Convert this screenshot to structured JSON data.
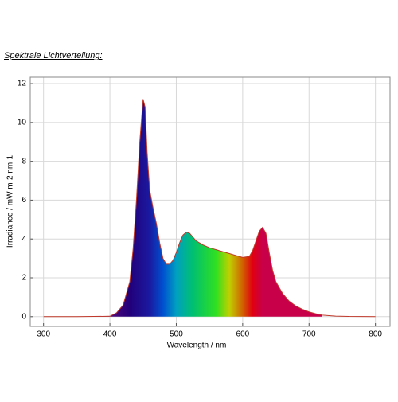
{
  "chart_data": {
    "type": "area",
    "title": "Spektrale Lichtverteilung:",
    "x_label": "Wavelength / nm",
    "y_label": "Irradiance / mW m-2 nm-1",
    "x": [
      300,
      350,
      400,
      410,
      420,
      430,
      435,
      440,
      445,
      450,
      453,
      456,
      460,
      465,
      470,
      475,
      480,
      485,
      490,
      495,
      500,
      505,
      510,
      515,
      520,
      525,
      530,
      540,
      550,
      560,
      570,
      580,
      590,
      600,
      610,
      615,
      620,
      625,
      630,
      635,
      640,
      645,
      650,
      660,
      670,
      680,
      690,
      700,
      710,
      720,
      740,
      760,
      800
    ],
    "values": [
      0,
      0,
      0.02,
      0.2,
      0.6,
      1.8,
      3.5,
      6,
      9,
      11.2,
      10.8,
      8.5,
      6.5,
      5.6,
      4.8,
      3.8,
      3.0,
      2.7,
      2.7,
      2.9,
      3.3,
      3.8,
      4.2,
      4.35,
      4.3,
      4.1,
      3.9,
      3.7,
      3.55,
      3.45,
      3.35,
      3.25,
      3.15,
      3.05,
      3.1,
      3.4,
      3.9,
      4.4,
      4.6,
      4.3,
      3.3,
      2.4,
      1.8,
      1.2,
      0.8,
      0.55,
      0.38,
      0.25,
      0.15,
      0.08,
      0.03,
      0.01,
      0
    ],
    "color": "#c0392b",
    "xlim": [
      280,
      822
    ],
    "ylim": [
      -0.5,
      12.33
    ],
    "xticks": [
      300,
      400,
      500,
      600,
      700,
      800
    ],
    "yticks": [
      0,
      2,
      4,
      6,
      8,
      10,
      12
    ],
    "grid": true
  }
}
